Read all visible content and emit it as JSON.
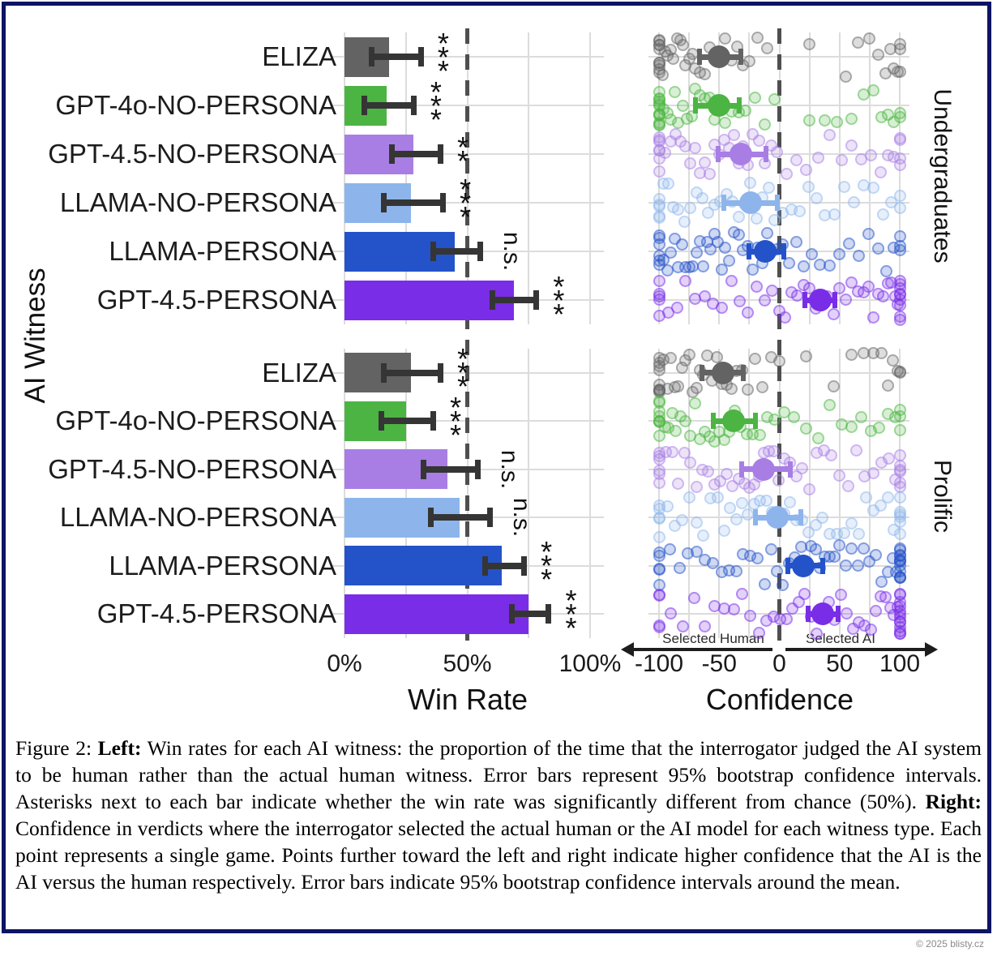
{
  "figure": {
    "y_axis_title": "AI Witness",
    "group_labels": [
      "Undergraduates",
      "Prolific"
    ],
    "witnesses": [
      "ELIZA",
      "GPT-4o-NO-PERSONA",
      "GPT-4.5-NO-PERSONA",
      "LLAMA-NO-PERSONA",
      "LLAMA-PERSONA",
      "GPT-4.5-PERSONA"
    ],
    "left_axis": {
      "title": "Win Rate",
      "ticks": [
        {
          "label": "0%",
          "value": 0
        },
        {
          "label": "50%",
          "value": 50
        },
        {
          "label": "100%",
          "value": 100
        }
      ],
      "dashed_at": 50
    },
    "right_axis": {
      "title": "Confidence",
      "ticks": [
        {
          "label": "-100",
          "value": -100
        },
        {
          "label": "-50",
          "value": -50
        },
        {
          "label": "0",
          "value": 0
        },
        {
          "label": "50",
          "value": 50
        },
        {
          "label": "100",
          "value": 100
        }
      ],
      "dashed_at": 0,
      "neg_label": "Selected Human",
      "pos_label": "Selected AI"
    }
  },
  "colors": {
    "rows": [
      "#636363",
      "#4cb442",
      "#a87ee4",
      "#8db5ec",
      "#2453c9",
      "#7a2de6"
    ],
    "errorbar": "#353535",
    "grid": "#dcdcdc",
    "dashed": "#4f4f4f",
    "frame": "#0c1464"
  },
  "chart_data": [
    {
      "type": "bar",
      "group": "Undergraduates",
      "title": "Win Rate",
      "xlabel": "Win Rate",
      "xlim": [
        0,
        100
      ],
      "categories": [
        "ELIZA",
        "GPT-4o-NO-PERSONA",
        "GPT-4.5-NO-PERSONA",
        "LLAMA-NO-PERSONA",
        "LLAMA-PERSONA",
        "GPT-4.5-PERSONA"
      ],
      "values": [
        18,
        17,
        28,
        27,
        45,
        69
      ],
      "ci": [
        [
          11,
          31
        ],
        [
          8,
          28
        ],
        [
          19,
          39
        ],
        [
          16,
          40
        ],
        [
          36,
          55
        ],
        [
          60,
          78
        ]
      ],
      "significance": [
        "***",
        "***",
        "**",
        "***",
        "n.s.",
        "***"
      ],
      "dashed_at": 50
    },
    {
      "type": "bar",
      "group": "Prolific",
      "title": "Win Rate",
      "xlabel": "Win Rate",
      "xlim": [
        0,
        100
      ],
      "categories": [
        "ELIZA",
        "GPT-4o-NO-PERSONA",
        "GPT-4.5-NO-PERSONA",
        "LLAMA-NO-PERSONA",
        "LLAMA-PERSONA",
        "GPT-4.5-PERSONA"
      ],
      "values": [
        27,
        25,
        42,
        47,
        64,
        75
      ],
      "ci": [
        [
          16,
          39
        ],
        [
          15,
          36
        ],
        [
          32,
          54
        ],
        [
          35,
          59
        ],
        [
          57,
          73
        ],
        [
          68,
          83
        ]
      ],
      "significance": [
        "***",
        "***",
        "n.s.",
        "n.s.",
        "***",
        "***"
      ],
      "dashed_at": 50
    },
    {
      "type": "scatter",
      "group": "Undergraduates",
      "title": "Confidence",
      "xlabel": "Confidence",
      "xlim": [
        -100,
        100
      ],
      "categories": [
        "ELIZA",
        "GPT-4o-NO-PERSONA",
        "GPT-4.5-NO-PERSONA",
        "LLAMA-NO-PERSONA",
        "LLAMA-PERSONA",
        "GPT-4.5-PERSONA"
      ],
      "means": [
        -50,
        -50,
        -32,
        -24,
        -12,
        34
      ],
      "ci": [
        [
          -66,
          -32
        ],
        [
          -70,
          -33
        ],
        [
          -51,
          -11
        ],
        [
          -46,
          -2
        ],
        [
          -25,
          4
        ],
        [
          21,
          46
        ]
      ],
      "points": [
        [
          -100,
          -100,
          -100,
          -100,
          -100,
          -100,
          -100,
          -100,
          -100,
          -100,
          -97,
          -95,
          -93,
          -90,
          -88,
          -85,
          -82,
          -80,
          -78,
          -75,
          -72,
          -70,
          -66,
          -62,
          -58,
          -54,
          -50,
          -45,
          -40,
          -35,
          -30,
          -25,
          -18,
          -10,
          25,
          55,
          65,
          75,
          82,
          88,
          92,
          95,
          98,
          100,
          100,
          100
        ],
        [
          -100,
          -100,
          -100,
          -100,
          -100,
          -100,
          -100,
          -100,
          -100,
          -100,
          -100,
          -100,
          -96,
          -93,
          -90,
          -87,
          -84,
          -80,
          -77,
          -73,
          -70,
          -66,
          -62,
          -58,
          -54,
          -50,
          -45,
          -40,
          -34,
          -28,
          -20,
          -12,
          -4,
          25,
          38,
          48,
          60,
          70,
          78,
          85,
          90,
          95,
          100,
          100
        ],
        [
          -100,
          -100,
          -100,
          -100,
          -100,
          -100,
          -100,
          -95,
          -90,
          -86,
          -82,
          -78,
          -74,
          -70,
          -66,
          -62,
          -58,
          -54,
          -50,
          -46,
          -42,
          -38,
          -34,
          -30,
          -26,
          -22,
          -17,
          -12,
          -7,
          -2,
          6,
          14,
          22,
          32,
          42,
          52,
          60,
          68,
          76,
          84,
          90,
          95,
          100,
          100,
          100,
          100
        ],
        [
          -100,
          -100,
          -100,
          -100,
          -100,
          -96,
          -92,
          -88,
          -84,
          -79,
          -74,
          -69,
          -64,
          -59,
          -54,
          -49,
          -44,
          -39,
          -34,
          -29,
          -24,
          -19,
          -14,
          -9,
          -4,
          3,
          10,
          17,
          24,
          31,
          38,
          46,
          54,
          62,
          70,
          78,
          86,
          93,
          100,
          100
        ],
        [
          -100,
          -100,
          -100,
          -100,
          -100,
          -100,
          -96,
          -93,
          -90,
          -87,
          -84,
          -81,
          -78,
          -75,
          -72,
          -69,
          -66,
          -63,
          -60,
          -57,
          -54,
          -51,
          -48,
          -45,
          -42,
          -38,
          -34,
          -30,
          -26,
          -22,
          -18,
          -14,
          -10,
          -6,
          -2,
          3,
          8,
          14,
          20,
          27,
          34,
          42,
          50,
          58,
          66,
          74,
          82,
          89,
          95,
          100,
          100,
          100
        ],
        [
          -100,
          -100,
          -100,
          -100,
          -100,
          -92,
          -85,
          -78,
          -70,
          -62,
          -55,
          -48,
          -40,
          -33,
          -26,
          -19,
          -12,
          -6,
          0,
          5,
          10,
          15,
          20,
          25,
          30,
          35,
          40,
          45,
          50,
          55,
          60,
          65,
          70,
          74,
          78,
          82,
          86,
          90,
          93,
          96,
          98,
          100,
          100,
          100,
          100,
          100,
          100,
          100,
          100,
          100
        ]
      ]
    },
    {
      "type": "scatter",
      "group": "Prolific",
      "title": "Confidence",
      "xlabel": "Confidence",
      "xlim": [
        -100,
        100
      ],
      "categories": [
        "ELIZA",
        "GPT-4o-NO-PERSONA",
        "GPT-4.5-NO-PERSONA",
        "LLAMA-NO-PERSONA",
        "LLAMA-PERSONA",
        "GPT-4.5-PERSONA"
      ],
      "means": [
        -47,
        -38,
        -13,
        -2,
        20,
        36
      ],
      "ci": [
        [
          -64,
          -30
        ],
        [
          -55,
          -20
        ],
        [
          -31,
          9
        ],
        [
          -20,
          18
        ],
        [
          7,
          36
        ],
        [
          24,
          49
        ]
      ],
      "points": [
        [
          -100,
          -100,
          -100,
          -100,
          -100,
          -100,
          -100,
          -100,
          -100,
          -96,
          -93,
          -90,
          -87,
          -84,
          -81,
          -78,
          -75,
          -72,
          -69,
          -66,
          -63,
          -60,
          -56,
          -52,
          -48,
          -44,
          -40,
          -36,
          -31,
          -26,
          -20,
          -14,
          -7,
          0,
          22,
          45,
          60,
          70,
          78,
          85,
          90,
          94,
          98,
          100,
          100
        ],
        [
          -100,
          -100,
          -100,
          -100,
          -100,
          -100,
          -100,
          -100,
          -95,
          -92,
          -89,
          -86,
          -82,
          -78,
          -74,
          -70,
          -66,
          -62,
          -58,
          -54,
          -50,
          -46,
          -42,
          -37,
          -32,
          -27,
          -22,
          -16,
          -10,
          -4,
          4,
          12,
          22,
          32,
          42,
          52,
          60,
          68,
          76,
          83,
          90,
          96,
          100,
          100,
          100
        ],
        [
          -100,
          -100,
          -100,
          -100,
          -100,
          -100,
          -94,
          -89,
          -84,
          -79,
          -74,
          -69,
          -64,
          -59,
          -54,
          -49,
          -44,
          -39,
          -34,
          -29,
          -25,
          -21,
          -17,
          -13,
          -9,
          -5,
          -1,
          4,
          9,
          14,
          19,
          25,
          31,
          37,
          43,
          50,
          57,
          64,
          71,
          78,
          85,
          91,
          96,
          100,
          100,
          100,
          100,
          100,
          100
        ],
        [
          -100,
          -100,
          -100,
          -100,
          -100,
          -93,
          -87,
          -81,
          -75,
          -69,
          -63,
          -57,
          -51,
          -46,
          -41,
          -36,
          -31,
          -26,
          -21,
          -16,
          -11,
          -6,
          -1,
          4,
          9,
          14,
          19,
          24,
          30,
          36,
          42,
          48,
          54,
          60,
          66,
          72,
          78,
          84,
          90,
          95,
          100,
          100,
          100,
          100,
          100,
          100
        ],
        [
          -100,
          -100,
          -100,
          -100,
          -100,
          -91,
          -83,
          -76,
          -69,
          -62,
          -55,
          -48,
          -42,
          -36,
          -30,
          -24,
          -18,
          -12,
          -7,
          -2,
          3,
          8,
          13,
          18,
          22,
          26,
          30,
          34,
          38,
          42,
          46,
          50,
          55,
          60,
          65,
          70,
          75,
          80,
          85,
          90,
          94,
          97,
          100,
          100,
          100,
          100,
          100,
          100,
          100,
          100,
          100,
          100,
          100,
          100
        ],
        [
          -100,
          -100,
          -100,
          -100,
          -90,
          -80,
          -71,
          -62,
          -54,
          -46,
          -38,
          -31,
          -24,
          -17,
          -11,
          -5,
          1,
          6,
          11,
          16,
          21,
          26,
          31,
          36,
          41,
          46,
          51,
          56,
          61,
          66,
          71,
          76,
          80,
          84,
          88,
          92,
          95,
          98,
          100,
          100,
          100,
          100,
          100,
          100,
          100,
          100,
          100,
          100,
          100,
          100,
          100
        ]
      ]
    }
  ],
  "caption": {
    "segments": [
      {
        "bold": false,
        "text": "Figure 2: "
      },
      {
        "bold": true,
        "text": "Left:"
      },
      {
        "bold": false,
        "text": " Win rates for each AI witness: the proportion of the time that the interrogator judged the AI system to be human rather than the actual human witness. Error bars represent 95% bootstrap confidence intervals.  Asterisks next to each bar indicate whether the win rate was significantly different from chance (50%). "
      },
      {
        "bold": true,
        "text": "Right:"
      },
      {
        "bold": false,
        "text": " Confidence in verdicts where the interrogator selected the actual human or the AI model for each witness type. Each point represents a single game. Points further toward the left and right indicate higher confidence that the AI is the AI versus the human respectively. Error bars indicate 95% bootstrap confidence intervals around the mean."
      }
    ]
  },
  "copyright": "© 2025 blisty.cz"
}
